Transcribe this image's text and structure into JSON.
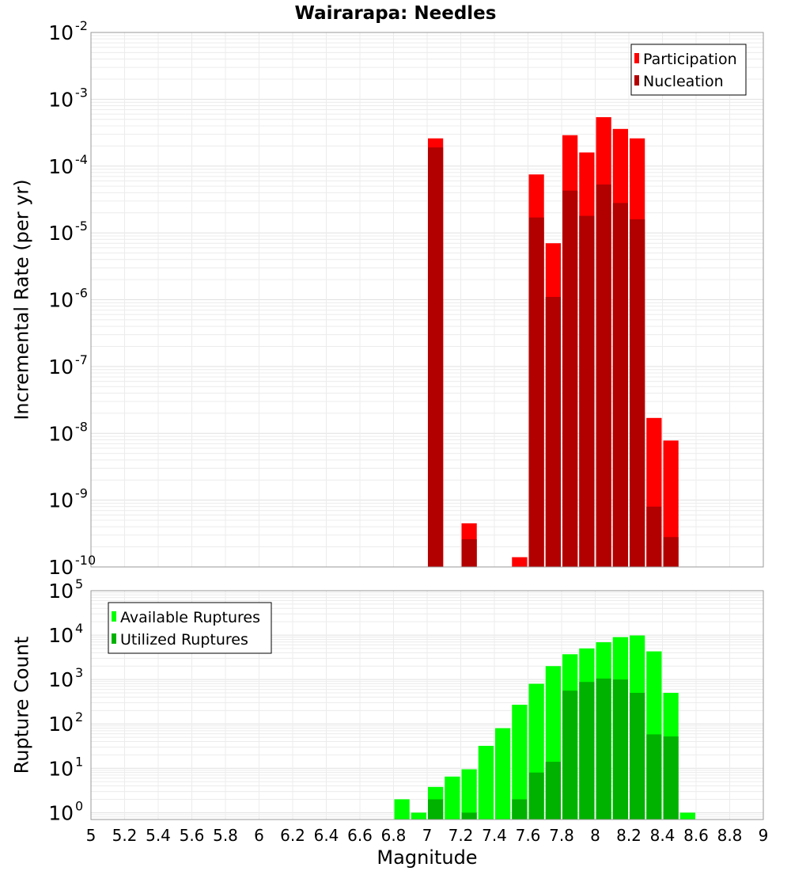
{
  "chart_data": [
    {
      "type": "bar",
      "title": "Wairarapa: Needles",
      "xlabel": "",
      "ylabel": "Incremental Rate (per yr)",
      "xlim": [
        5,
        9
      ],
      "ylim": [
        1e-10,
        0.01
      ],
      "yscale": "log",
      "y_ticks": [
        {
          "base": "10",
          "exp": "-2"
        },
        {
          "base": "10",
          "exp": "-3"
        },
        {
          "base": "10",
          "exp": "-4"
        },
        {
          "base": "10",
          "exp": "-5"
        },
        {
          "base": "10",
          "exp": "-6"
        },
        {
          "base": "10",
          "exp": "-7"
        },
        {
          "base": "10",
          "exp": "-8"
        },
        {
          "base": "10",
          "exp": "-9"
        },
        {
          "base": "10",
          "exp": "-10"
        }
      ],
      "grid": true,
      "legend_position": "top-right",
      "bar_width": 0.1,
      "series": [
        {
          "name": "Participation",
          "color": "#ff0000",
          "points": [
            [
              7.05,
              0.00026
            ],
            [
              7.25,
              4.5e-10
            ],
            [
              7.55,
              1.4e-10
            ],
            [
              7.65,
              7.5e-05
            ],
            [
              7.75,
              7e-06
            ],
            [
              7.85,
              0.00029
            ],
            [
              7.95,
              0.00016
            ],
            [
              8.05,
              0.00054
            ],
            [
              8.15,
              0.00036
            ],
            [
              8.25,
              0.00026
            ],
            [
              8.35,
              1.7e-08
            ],
            [
              8.45,
              7.8e-09
            ]
          ]
        },
        {
          "name": "Nucleation",
          "color": "#b20000",
          "points": [
            [
              7.05,
              0.00019
            ],
            [
              7.25,
              2.6e-10
            ],
            [
              7.65,
              1.7e-05
            ],
            [
              7.75,
              1.1e-06
            ],
            [
              7.85,
              4.3e-05
            ],
            [
              7.95,
              1.8e-05
            ],
            [
              8.05,
              5.3e-05
            ],
            [
              8.15,
              2.8e-05
            ],
            [
              8.25,
              1.6e-05
            ],
            [
              8.35,
              8e-10
            ],
            [
              8.45,
              2.8e-10
            ]
          ]
        }
      ]
    },
    {
      "type": "bar",
      "title": "",
      "xlabel": "Magnitude",
      "ylabel": "Rupture Count",
      "xlim": [
        5,
        9
      ],
      "ylim": [
        0.7,
        100000
      ],
      "yscale": "log",
      "x_ticks": [
        "5",
        "5.2",
        "5.4",
        "5.6",
        "5.8",
        "6",
        "6.2",
        "6.4",
        "6.6",
        "6.8",
        "7",
        "7.2",
        "7.4",
        "7.6",
        "7.8",
        "8",
        "8.2",
        "8.4",
        "8.6",
        "8.8",
        "9"
      ],
      "y_ticks": [
        {
          "base": "10",
          "exp": "5"
        },
        {
          "base": "10",
          "exp": "4"
        },
        {
          "base": "10",
          "exp": "3"
        },
        {
          "base": "10",
          "exp": "2"
        },
        {
          "base": "10",
          "exp": "1"
        },
        {
          "base": "10",
          "exp": "0"
        }
      ],
      "grid": true,
      "legend_position": "top-left",
      "bar_width": 0.1,
      "series": [
        {
          "name": "Available Ruptures",
          "color": "#00ff00",
          "points": [
            [
              6.85,
              2
            ],
            [
              6.95,
              1
            ],
            [
              7.05,
              3.8
            ],
            [
              7.15,
              6.5
            ],
            [
              7.25,
              9.5
            ],
            [
              7.35,
              32
            ],
            [
              7.45,
              80
            ],
            [
              7.55,
              270
            ],
            [
              7.65,
              800
            ],
            [
              7.75,
              2000
            ],
            [
              7.85,
              3700
            ],
            [
              7.95,
              5000
            ],
            [
              8.05,
              6900
            ],
            [
              8.15,
              9000
            ],
            [
              8.25,
              9800
            ],
            [
              8.35,
              4300
            ],
            [
              8.45,
              500
            ],
            [
              8.55,
              1
            ]
          ]
        },
        {
          "name": "Utilized Ruptures",
          "color": "#00b200",
          "points": [
            [
              7.05,
              2
            ],
            [
              7.25,
              1
            ],
            [
              7.55,
              2
            ],
            [
              7.65,
              8
            ],
            [
              7.75,
              14
            ],
            [
              7.85,
              560
            ],
            [
              7.95,
              880
            ],
            [
              8.05,
              1050
            ],
            [
              8.15,
              1000
            ],
            [
              8.25,
              500
            ],
            [
              8.35,
              58
            ],
            [
              8.45,
              52
            ]
          ]
        }
      ]
    }
  ]
}
